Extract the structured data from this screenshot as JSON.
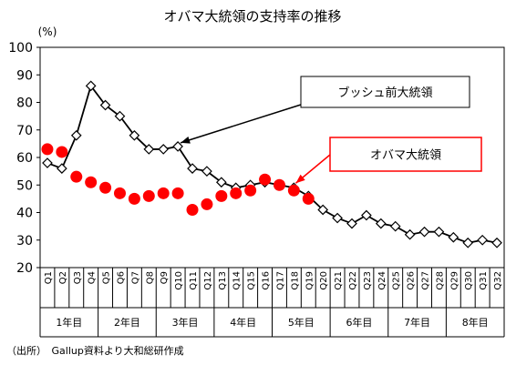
{
  "chart_data": {
    "type": "line",
    "title": "オバマ大統領の支持率の推移",
    "y_unit_label": "(%)",
    "ylim": [
      20,
      100
    ],
    "yticks": [
      20,
      30,
      40,
      50,
      60,
      70,
      80,
      90,
      100
    ],
    "grid": false,
    "categories": [
      "Q1",
      "Q2",
      "Q3",
      "Q4",
      "Q5",
      "Q6",
      "Q7",
      "Q8",
      "Q9",
      "Q10",
      "Q11",
      "Q12",
      "Q13",
      "Q14",
      "Q15",
      "Q16",
      "Q17",
      "Q18",
      "Q19",
      "Q20",
      "Q21",
      "Q22",
      "Q23",
      "Q24",
      "Q25",
      "Q26",
      "Q27",
      "Q28",
      "Q29",
      "Q30",
      "Q31",
      "Q32"
    ],
    "year_groups": [
      {
        "label": "1年目",
        "span": 4
      },
      {
        "label": "2年目",
        "span": 4
      },
      {
        "label": "3年目",
        "span": 4
      },
      {
        "label": "4年目",
        "span": 4
      },
      {
        "label": "5年目",
        "span": 4
      },
      {
        "label": "6年目",
        "span": 4
      },
      {
        "label": "7年目",
        "span": 4
      },
      {
        "label": "8年目",
        "span": 4
      }
    ],
    "series": [
      {
        "name": "ブッシュ前大統領",
        "color": "#000000",
        "marker": "diamond-open",
        "values": [
          58,
          56,
          68,
          86,
          79,
          75,
          68,
          63,
          63,
          64,
          56,
          55,
          51,
          49,
          50,
          51,
          50,
          49,
          46,
          41,
          38,
          36,
          39,
          36,
          35,
          32,
          33,
          33,
          31,
          29,
          30,
          29
        ]
      },
      {
        "name": "オバマ大統領",
        "color": "#ff0000",
        "marker": "circle-filled",
        "values": [
          63,
          62,
          53,
          51,
          49,
          47,
          45,
          46,
          47,
          47,
          41,
          43,
          46,
          47,
          48,
          52,
          50,
          48,
          45,
          null,
          null,
          null,
          null,
          null,
          null,
          null,
          null,
          null,
          null,
          null,
          null,
          null
        ]
      }
    ],
    "annotations": [
      {
        "text": "ブッシュ前大統領",
        "box_border": "#000000",
        "arrow_color": "#000000",
        "points_to": "Q10"
      },
      {
        "text": "オバマ大統領",
        "box_border": "#ff0000",
        "arrow_color": "#ff0000",
        "points_to": "Q17"
      }
    ]
  },
  "source_note": "（出所）　Gallup資料より大和総研作成"
}
